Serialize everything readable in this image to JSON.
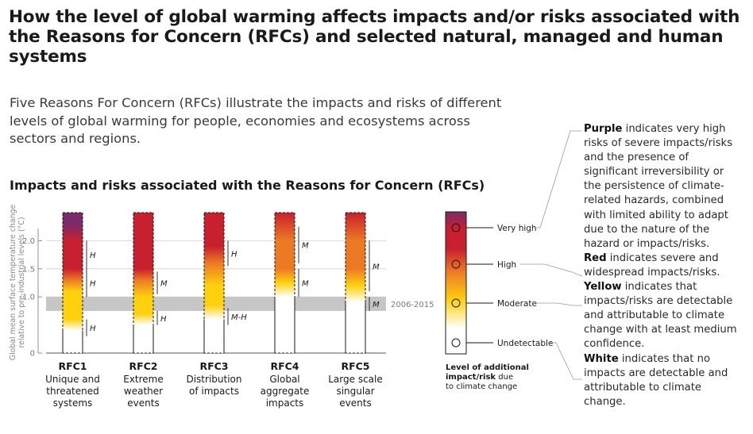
{
  "header": {
    "title": "How the level of global warming affects impacts and/or risks associated with the Reasons for Concern (RFCs) and selected natural, managed and human systems",
    "subtitle": "Five Reasons For Concern (RFCs) illustrate the impacts and risks of different levels of global warming for people, economies and ecosystems across sectors and regions."
  },
  "section_title": "Impacts and risks associated with the Reasons for Concern (RFCs)",
  "colors": {
    "purple": "#7b2a6b",
    "red": "#c8202e",
    "orange": "#ec7a24",
    "yellow": "#fdd10e",
    "white": "#ffffff",
    "band": "#c6c6c6"
  },
  "chart_data": {
    "type": "bar",
    "ylabel": "Global mean surface temperature change relative to pre-industrial levels (°C)",
    "ylim": [
      0,
      2.5
    ],
    "yticks": [
      0,
      1.0,
      1.5,
      2.0
    ],
    "band": {
      "from": 0.75,
      "to": 1.0,
      "label": "2006-2015"
    },
    "categories": [
      {
        "code": "RFC1",
        "name": "Unique and threatened systems"
      },
      {
        "code": "RFC2",
        "name": "Extreme weather events"
      },
      {
        "code": "RFC3",
        "name": "Distribution of impacts"
      },
      {
        "code": "RFC4",
        "name": "Global aggregate impacts"
      },
      {
        "code": "RFC5",
        "name": "Large scale singular events"
      }
    ],
    "risk_transitions": [
      {
        "bar": "RFC1",
        "stops": [
          [
            0.4,
            "white"
          ],
          [
            0.6,
            "yellow"
          ],
          [
            1.1,
            "yellow"
          ],
          [
            1.3,
            "orange"
          ],
          [
            1.5,
            "red"
          ],
          [
            2.0,
            "red"
          ],
          [
            2.3,
            "purple"
          ]
        ]
      },
      {
        "bar": "RFC2",
        "stops": [
          [
            0.5,
            "white"
          ],
          [
            0.7,
            "yellow"
          ],
          [
            1.0,
            "yellow"
          ],
          [
            1.3,
            "orange"
          ],
          [
            1.5,
            "red"
          ]
        ]
      },
      {
        "bar": "RFC3",
        "stops": [
          [
            0.6,
            "white"
          ],
          [
            0.85,
            "yellow"
          ],
          [
            1.2,
            "yellow"
          ],
          [
            1.6,
            "orange"
          ],
          [
            1.9,
            "red"
          ]
        ]
      },
      {
        "bar": "RFC4",
        "stops": [
          [
            1.0,
            "white"
          ],
          [
            1.25,
            "yellow"
          ],
          [
            1.5,
            "orange"
          ],
          [
            2.0,
            "orange"
          ],
          [
            2.5,
            "red"
          ]
        ]
      },
      {
        "bar": "RFC5",
        "stops": [
          [
            0.9,
            "white"
          ],
          [
            1.2,
            "yellow"
          ],
          [
            1.5,
            "orange"
          ],
          [
            2.0,
            "orange"
          ],
          [
            2.5,
            "red"
          ]
        ]
      }
    ],
    "confidence": [
      {
        "bar": "RFC1",
        "label": "H",
        "from": 0.3,
        "to": 0.6
      },
      {
        "bar": "RFC1",
        "label": "H",
        "from": 1.0,
        "to": 1.5
      },
      {
        "bar": "RFC1",
        "label": "H",
        "from": 1.5,
        "to": 2.0
      },
      {
        "bar": "RFC2",
        "label": "H",
        "from": 0.5,
        "to": 0.75
      },
      {
        "bar": "RFC2",
        "label": "M",
        "from": 1.05,
        "to": 1.45
      },
      {
        "bar": "RFC3",
        "label": "M-H",
        "from": 0.5,
        "to": 0.8
      },
      {
        "bar": "RFC3",
        "label": "H",
        "from": 1.55,
        "to": 2.0
      },
      {
        "bar": "RFC4",
        "label": "M",
        "from": 1.0,
        "to": 1.5
      },
      {
        "bar": "RFC4",
        "label": "M",
        "from": 1.6,
        "to": 2.25
      },
      {
        "bar": "RFC5",
        "label": "M",
        "from": 0.75,
        "to": 1.0
      },
      {
        "bar": "RFC5",
        "label": "M",
        "from": 1.1,
        "to": 2.0
      }
    ]
  },
  "legend": {
    "title_bold": "Level of additional impact/risk",
    "title_rest": " due to climate change",
    "levels": [
      "Very high",
      "High",
      "Moderate",
      "Undetectable"
    ]
  },
  "explanations": [
    {
      "key": "Purple",
      "text": " indicates very high risks of severe impacts/risks and the presence of significant irreversibility or the persistence of climate-related hazards, combined with limited ability to adapt due to the nature of the hazard or impacts/risks."
    },
    {
      "key": "Red",
      "text": " indicates severe and widespread impacts/risks."
    },
    {
      "key": "Yellow",
      "text": " indicates that impacts/risks are detectable and attributable to climate change with at least medium confidence."
    },
    {
      "key": "White",
      "text": " indicates that no impacts are detectable and attributable to climate change."
    }
  ]
}
